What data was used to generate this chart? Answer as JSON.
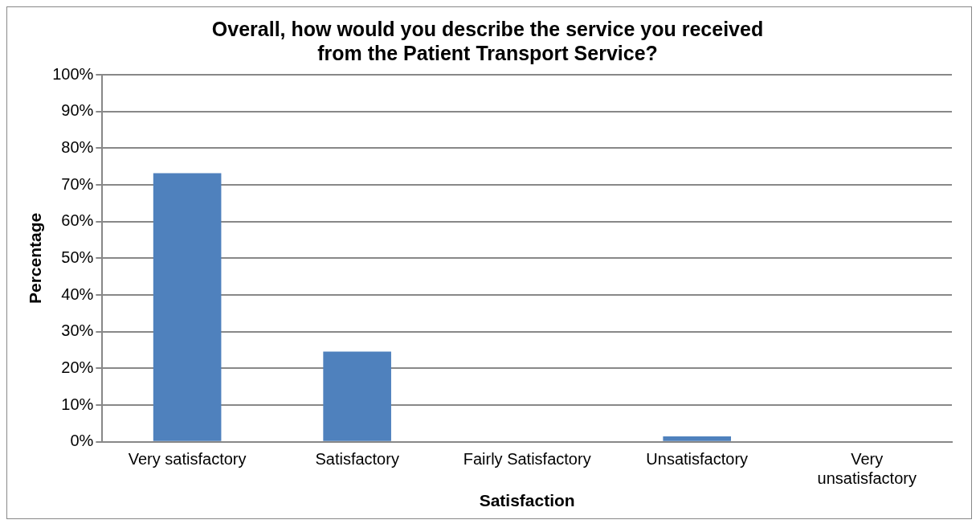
{
  "chart_data": {
    "type": "bar",
    "title": "Overall, how would you describe the service you received\nfrom the Patient Transport Service?",
    "xlabel": "Satisfaction",
    "ylabel": "Percentage",
    "categories": [
      "Very satisfactory",
      "Satisfactory",
      "Fairly Satisfactory",
      "Unsatisfactory",
      "Very unsatisfactory"
    ],
    "values": [
      73.2,
      24.6,
      0,
      1.5,
      0
    ],
    "color": "#4f81bd",
    "ylim": [
      0,
      100
    ],
    "yticks": [
      {
        "value": 0,
        "label": "0%"
      },
      {
        "value": 10,
        "label": "10%"
      },
      {
        "value": 20,
        "label": "20%"
      },
      {
        "value": 30,
        "label": "30%"
      },
      {
        "value": 40,
        "label": "40%"
      },
      {
        "value": 50,
        "label": "50%"
      },
      {
        "value": 60,
        "label": "60%"
      },
      {
        "value": 70,
        "label": "70%"
      },
      {
        "value": 80,
        "label": "80%"
      },
      {
        "value": 90,
        "label": "90%"
      },
      {
        "value": 100,
        "label": "100%"
      }
    ],
    "grid": "y",
    "legend": false
  }
}
